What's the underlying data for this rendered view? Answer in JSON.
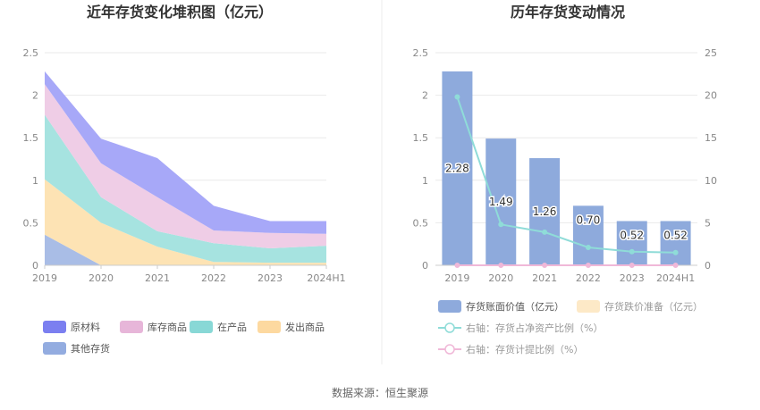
{
  "chart_data": [
    {
      "type": "area",
      "title": "近年存货变化堆积图（亿元）",
      "categories": [
        "2019",
        "2020",
        "2021",
        "2022",
        "2023",
        "2024H1"
      ],
      "stacked": true,
      "ylim": [
        0,
        2.5
      ],
      "yticks": [
        "0",
        "0.5",
        "1",
        "1.5",
        "2",
        "2.5"
      ],
      "grid": true,
      "legend_position": "bottom",
      "series": [
        {
          "name": "其他存货",
          "color": "#a9bde6",
          "values": [
            0.36,
            0.0,
            0.0,
            0.0,
            0.0,
            0.0
          ]
        },
        {
          "name": "发出商品",
          "color": "#fde3b4",
          "values": [
            0.65,
            0.5,
            0.22,
            0.04,
            0.03,
            0.03
          ]
        },
        {
          "name": "在产品",
          "color": "#a6e3e0",
          "values": [
            0.76,
            0.3,
            0.18,
            0.22,
            0.17,
            0.2
          ]
        },
        {
          "name": "库存商品",
          "color": "#efcde6",
          "values": [
            0.36,
            0.4,
            0.4,
            0.15,
            0.18,
            0.14
          ]
        },
        {
          "name": "原材料",
          "color": "#a7a8f8",
          "values": [
            0.15,
            0.29,
            0.46,
            0.29,
            0.14,
            0.15
          ]
        }
      ],
      "legend_order": [
        "原材料",
        "库存商品",
        "在产品",
        "发出商品",
        "其他存货"
      ],
      "legend_colors": {
        "原材料": "#7b7ff0",
        "库存商品": "#e7b6d9",
        "在产品": "#88d8d6",
        "发出商品": "#fdd9a0",
        "其他存货": "#93ace0"
      }
    },
    {
      "type": "bar",
      "title": "历年存货变动情况",
      "categories": [
        "2019",
        "2020",
        "2021",
        "2022",
        "2023",
        "2024H1"
      ],
      "ylim": [
        0,
        2.5
      ],
      "yticks": [
        "0",
        "0.5",
        "1",
        "1.5",
        "2",
        "2.5"
      ],
      "y2lim": [
        0,
        25
      ],
      "y2ticks": [
        "0",
        "5",
        "10",
        "15",
        "20",
        "25"
      ],
      "grid": true,
      "legend_position": "bottom",
      "series": [
        {
          "name": "存货账面价值（亿元）",
          "type": "bar",
          "axis": "left",
          "color": "#8eaadc",
          "values": [
            2.28,
            1.49,
            1.26,
            0.7,
            0.52,
            0.52
          ],
          "labels": [
            "2.28",
            "1.49",
            "1.26",
            "0.70",
            "0.52",
            "0.52"
          ]
        },
        {
          "name": "存货跌价准备（亿元）",
          "type": "bar",
          "axis": "left",
          "color": "#fde9c7",
          "values": [
            0,
            0,
            0,
            0,
            0,
            0
          ]
        },
        {
          "name": "右轴：存货占净资产比例（%）",
          "type": "line",
          "axis": "right",
          "color": "#8fdcd8",
          "values": [
            19.8,
            4.8,
            3.9,
            2.1,
            1.6,
            1.5
          ]
        },
        {
          "name": "右轴：存货计提比例（%）",
          "type": "line",
          "axis": "right",
          "color": "#f0b8d8",
          "values": [
            0,
            0,
            0,
            0,
            0,
            0
          ]
        }
      ]
    }
  ],
  "footer": {
    "source": "数据来源：恒生聚源"
  }
}
